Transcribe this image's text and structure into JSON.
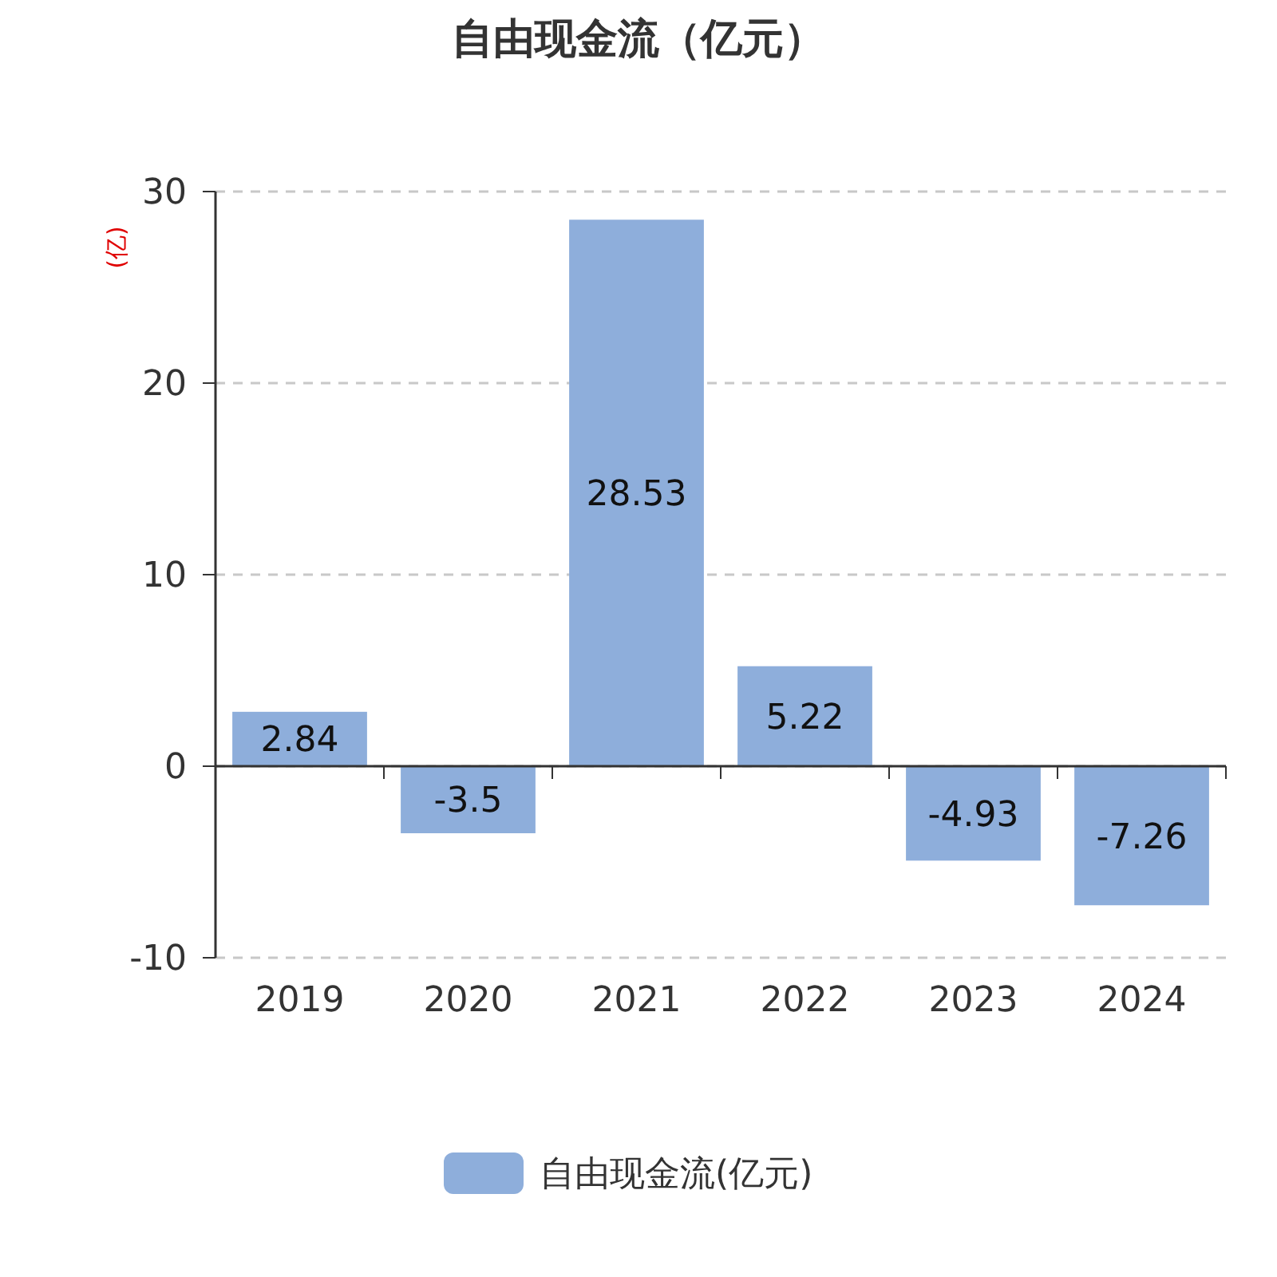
{
  "chart_data": {
    "type": "bar",
    "title": "自由现金流（亿元）",
    "ylabel": "(亿)",
    "categories": [
      "2019",
      "2020",
      "2021",
      "2022",
      "2023",
      "2024"
    ],
    "series": [
      {
        "name": "自由现金流(亿元)",
        "color": "#8eaedb",
        "values": [
          2.84,
          -3.5,
          28.53,
          5.22,
          -4.93,
          -7.26
        ]
      }
    ],
    "ylim": [
      -10,
      30
    ],
    "yticks": [
      -10,
      0,
      10,
      20,
      30
    ],
    "grid": "y",
    "legend": "bottom",
    "data_labels": true
  }
}
